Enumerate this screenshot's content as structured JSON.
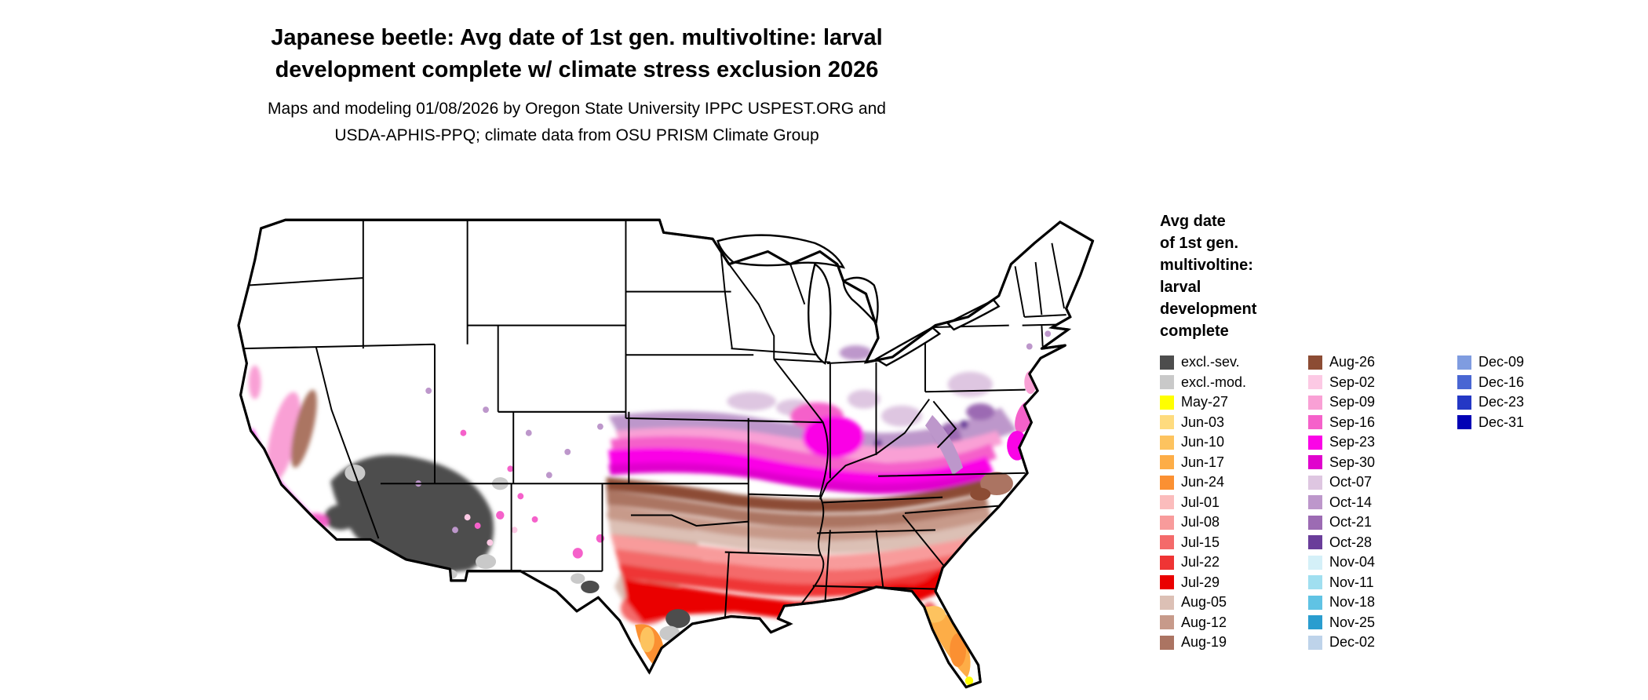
{
  "title": {
    "line1": "Japanese beetle: Avg date of 1st gen. multivoltine: larval",
    "line2": "development complete w/ climate stress exclusion 2026"
  },
  "subtitle": {
    "line1": "Maps and modeling 01/08/2026 by Oregon State University IPPC USPEST.ORG and",
    "line2": "USDA-APHIS-PPQ; climate data from OSU PRISM Climate Group"
  },
  "map": {
    "region": "Continental United States",
    "no_data_color": "#ffffff",
    "border_color": "#000000"
  },
  "legend": {
    "title_lines": [
      "Avg date",
      "of 1st gen.",
      "multivoltine:",
      "larval",
      "development",
      "complete"
    ],
    "columns": [
      [
        {
          "label": "excl.-sev.",
          "color": "#4d4d4d"
        },
        {
          "label": "excl.-mod.",
          "color": "#c9c9c9"
        },
        {
          "label": "May-27",
          "color": "#ffff00"
        },
        {
          "label": "Jun-03",
          "color": "#fedb7e"
        },
        {
          "label": "Jun-10",
          "color": "#fdc35f"
        },
        {
          "label": "Jun-17",
          "color": "#fdad47"
        },
        {
          "label": "Jun-24",
          "color": "#fb9032"
        },
        {
          "label": "Jul-01",
          "color": "#fbbcbc"
        },
        {
          "label": "Jul-08",
          "color": "#f89b9b"
        },
        {
          "label": "Jul-15",
          "color": "#f46a6a"
        },
        {
          "label": "Jul-22",
          "color": "#ef3434"
        },
        {
          "label": "Jul-29",
          "color": "#ea0000"
        },
        {
          "label": "Aug-05",
          "color": "#dcc0b5"
        },
        {
          "label": "Aug-12",
          "color": "#c79a8a"
        },
        {
          "label": "Aug-19",
          "color": "#ab7462"
        }
      ],
      [
        {
          "label": "Aug-26",
          "color": "#8c4c34"
        },
        {
          "label": "Sep-02",
          "color": "#fcc9e4"
        },
        {
          "label": "Sep-09",
          "color": "#f9a0d5"
        },
        {
          "label": "Sep-16",
          "color": "#f561ca"
        },
        {
          "label": "Sep-23",
          "color": "#fa04e6"
        },
        {
          "label": "Sep-30",
          "color": "#e002cd"
        },
        {
          "label": "Oct-07",
          "color": "#dec6e1"
        },
        {
          "label": "Oct-14",
          "color": "#bd97cb"
        },
        {
          "label": "Oct-21",
          "color": "#9c6bb3"
        },
        {
          "label": "Oct-28",
          "color": "#6a3d9a"
        },
        {
          "label": "Nov-04",
          "color": "#d4f0f8"
        },
        {
          "label": "Nov-11",
          "color": "#a0dff0"
        },
        {
          "label": "Nov-18",
          "color": "#60c3e4"
        },
        {
          "label": "Nov-25",
          "color": "#2a9dcf"
        },
        {
          "label": "Dec-02",
          "color": "#bed3ea"
        }
      ],
      [
        {
          "label": "Dec-09",
          "color": "#7f9ce0"
        },
        {
          "label": "Dec-16",
          "color": "#4966d3"
        },
        {
          "label": "Dec-23",
          "color": "#2438c5"
        },
        {
          "label": "Dec-31",
          "color": "#0202b5"
        }
      ]
    ]
  }
}
